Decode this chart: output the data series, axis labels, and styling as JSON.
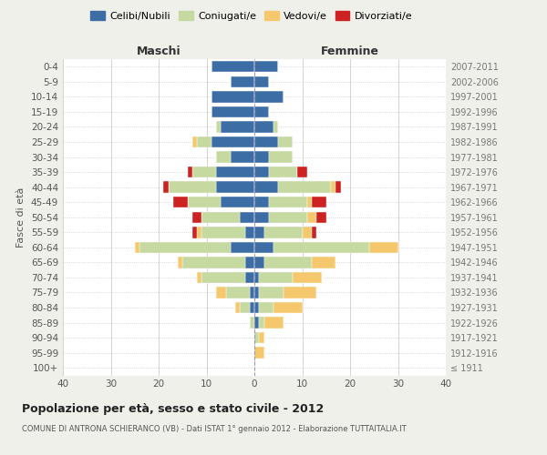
{
  "age_groups": [
    "100+",
    "95-99",
    "90-94",
    "85-89",
    "80-84",
    "75-79",
    "70-74",
    "65-69",
    "60-64",
    "55-59",
    "50-54",
    "45-49",
    "40-44",
    "35-39",
    "30-34",
    "25-29",
    "20-24",
    "15-19",
    "10-14",
    "5-9",
    "0-4"
  ],
  "birth_years": [
    "≤ 1911",
    "1912-1916",
    "1917-1921",
    "1922-1926",
    "1927-1931",
    "1932-1936",
    "1937-1941",
    "1942-1946",
    "1947-1951",
    "1952-1956",
    "1957-1961",
    "1962-1966",
    "1967-1971",
    "1972-1976",
    "1977-1981",
    "1982-1986",
    "1987-1991",
    "1992-1996",
    "1997-2001",
    "2002-2006",
    "2007-2011"
  ],
  "males": {
    "celibi": [
      0,
      0,
      0,
      0,
      1,
      1,
      2,
      2,
      5,
      2,
      3,
      7,
      8,
      8,
      5,
      9,
      7,
      9,
      9,
      5,
      9
    ],
    "coniugati": [
      0,
      0,
      0,
      1,
      2,
      5,
      9,
      13,
      19,
      9,
      8,
      7,
      10,
      5,
      3,
      3,
      1,
      0,
      0,
      0,
      0
    ],
    "vedovi": [
      0,
      0,
      0,
      0,
      1,
      2,
      1,
      1,
      1,
      1,
      0,
      0,
      0,
      0,
      0,
      1,
      0,
      0,
      0,
      0,
      0
    ],
    "divorziati": [
      0,
      0,
      0,
      0,
      0,
      0,
      0,
      0,
      0,
      1,
      2,
      3,
      1,
      1,
      0,
      0,
      0,
      0,
      0,
      0,
      0
    ]
  },
  "females": {
    "nubili": [
      0,
      0,
      0,
      1,
      1,
      1,
      1,
      2,
      4,
      2,
      3,
      3,
      5,
      3,
      3,
      5,
      4,
      3,
      6,
      3,
      5
    ],
    "coniugate": [
      0,
      0,
      1,
      1,
      3,
      5,
      7,
      10,
      20,
      8,
      8,
      8,
      11,
      6,
      5,
      3,
      1,
      0,
      0,
      0,
      0
    ],
    "vedove": [
      0,
      2,
      1,
      4,
      6,
      7,
      6,
      5,
      6,
      2,
      2,
      1,
      1,
      0,
      0,
      0,
      0,
      0,
      0,
      0,
      0
    ],
    "divorziate": [
      0,
      0,
      0,
      0,
      0,
      0,
      0,
      0,
      0,
      1,
      2,
      3,
      1,
      2,
      0,
      0,
      0,
      0,
      0,
      0,
      0
    ]
  },
  "colors": {
    "celibi": "#3c6ea5",
    "coniugati": "#c5d9a0",
    "vedovi": "#f5c86e",
    "divorziati": "#cc2222"
  },
  "xlim": 40,
  "title": "Popolazione per età, sesso e stato civile - 2012",
  "subtitle": "COMUNE DI ANTRONA SCHIERANCO (VB) - Dati ISTAT 1° gennaio 2012 - Elaborazione TUTTAITALIA.IT",
  "ylabel_left": "Fasce di età",
  "xlabel_left": "Maschi",
  "xlabel_right": "Femmine",
  "bg_color": "#f0f0eb",
  "plot_bg": "#ffffff",
  "grid_color": "#cccccc"
}
